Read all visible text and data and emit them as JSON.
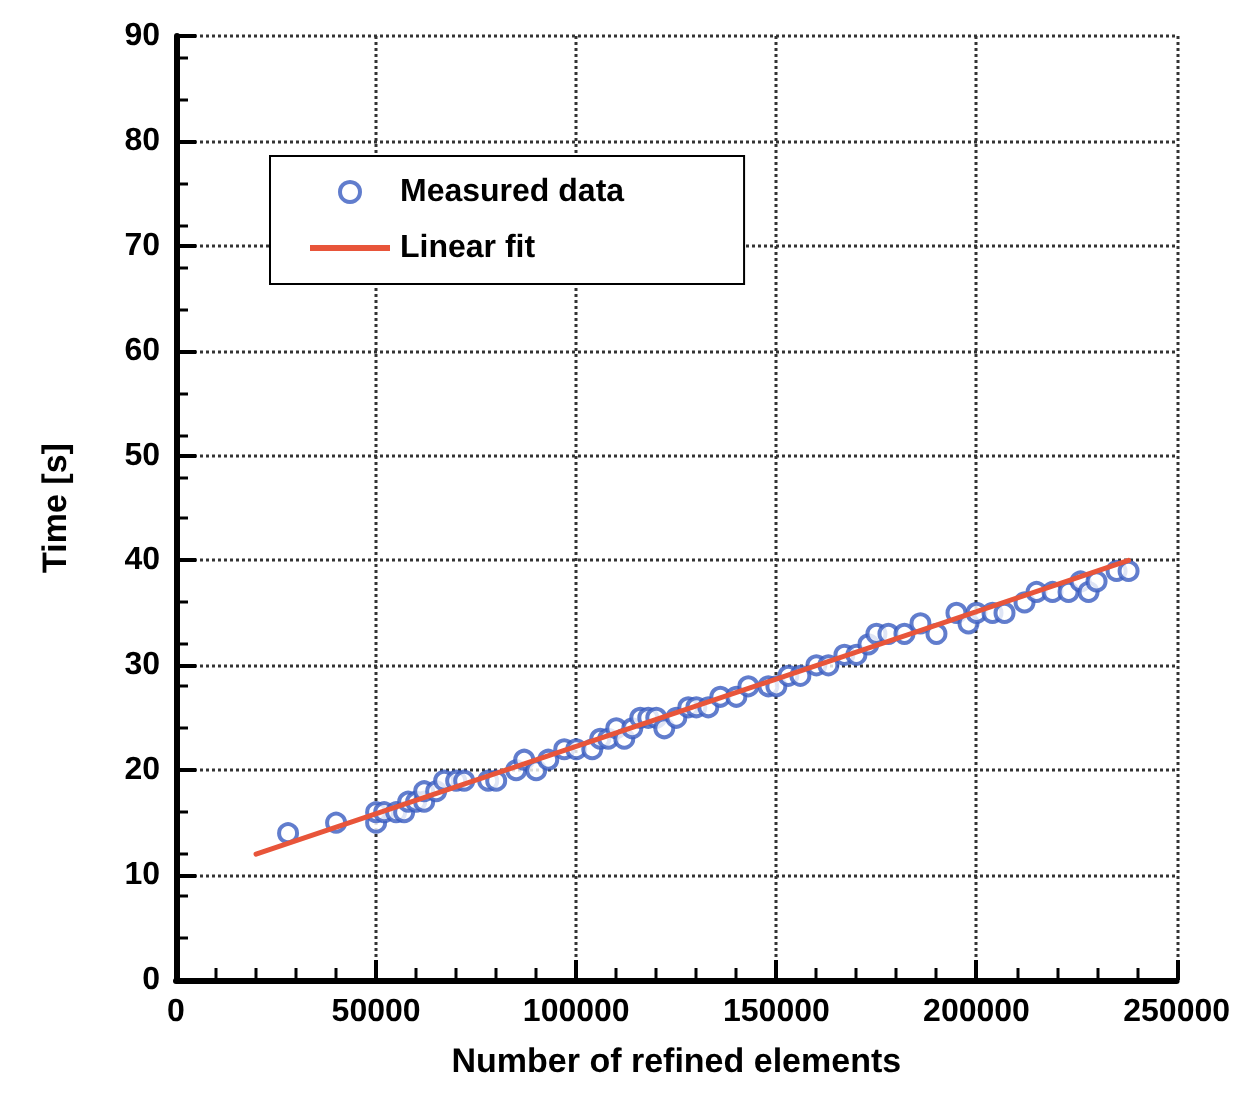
{
  "chart_data": {
    "type": "scatter",
    "xlabel": "Number of refined elements",
    "ylabel": "Time [s]",
    "xlim": [
      0,
      250000
    ],
    "xticks": [
      0,
      50000,
      100000,
      150000,
      200000,
      250000
    ],
    "ylim": [
      0,
      90
    ],
    "yticks": [
      0,
      10,
      20,
      30,
      40,
      50,
      60,
      70,
      80,
      90
    ],
    "grid": true,
    "legend": "top left",
    "marker": "circle",
    "series": [
      {
        "name": "Measured data",
        "type": "scatter",
        "color": "#3a5cc0",
        "x": [
          28000,
          40000,
          50000,
          50000,
          52000,
          55000,
          57000,
          58000,
          60000,
          62000,
          62000,
          65000,
          67000,
          70000,
          72000,
          78000,
          80000,
          85000,
          87000,
          90000,
          93000,
          97000,
          100000,
          104000,
          106000,
          108000,
          110000,
          112000,
          114000,
          116000,
          118000,
          120000,
          122000,
          125000,
          128000,
          130000,
          133000,
          136000,
          140000,
          143000,
          148000,
          150000,
          153000,
          156000,
          160000,
          163000,
          167000,
          170000,
          173000,
          175000,
          178000,
          182000,
          186000,
          190000,
          195000,
          198000,
          200000,
          204000,
          207000,
          212000,
          215000,
          219000,
          223000,
          226000,
          228000,
          230000,
          235000,
          238000
        ],
        "values": [
          14,
          15,
          15,
          16,
          16,
          16,
          16,
          17,
          17,
          17,
          18,
          18,
          19,
          19,
          19,
          19,
          19,
          20,
          21,
          20,
          21,
          22,
          22,
          22,
          23,
          23,
          24,
          23,
          24,
          25,
          25,
          25,
          24,
          25,
          26,
          26,
          26,
          27,
          27,
          28,
          28,
          28,
          29,
          29,
          30,
          30,
          31,
          31,
          32,
          33,
          33,
          33,
          34,
          33,
          35,
          34,
          35,
          35,
          35,
          36,
          37,
          37,
          37,
          38,
          37,
          38,
          39,
          39
        ]
      },
      {
        "name": "Linear fit",
        "type": "line",
        "color": "#e8553a",
        "marker": "none",
        "line_style": "solid",
        "x": [
          20000,
          238000
        ],
        "values": [
          12,
          40
        ]
      }
    ]
  }
}
